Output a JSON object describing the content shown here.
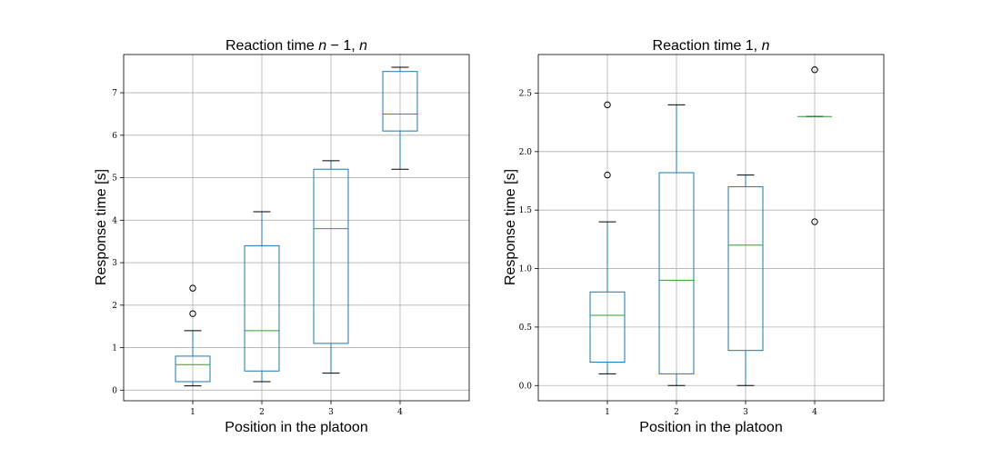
{
  "chart_data": [
    {
      "type": "box",
      "title": "Reaction time n − 1, n",
      "title_parts": {
        "prefix": "Reaction time ",
        "italic_a": "n",
        "middle": " − 1, ",
        "italic_b": "n"
      },
      "xlabel": "Position in the platoon",
      "ylabel": "Response time [s]",
      "categories": [
        "1",
        "2",
        "3",
        "4"
      ],
      "ylim": [
        -0.25,
        7.9
      ],
      "yticks": [
        "0",
        "1",
        "2",
        "3",
        "4",
        "5",
        "6",
        "7"
      ],
      "grid": true,
      "boxes": [
        {
          "category": "1",
          "whisker_low": 0.1,
          "q1": 0.2,
          "median": 0.6,
          "q3": 0.8,
          "whisker_high": 1.4,
          "outliers": [
            1.8,
            2.4
          ]
        },
        {
          "category": "2",
          "whisker_low": 0.2,
          "q1": 0.45,
          "median": 1.4,
          "q3": 3.4,
          "whisker_high": 4.2,
          "outliers": []
        },
        {
          "category": "3",
          "whisker_low": 0.4,
          "q1": 1.1,
          "median": 3.8,
          "q3": 5.2,
          "whisker_high": 5.4,
          "outliers": []
        },
        {
          "category": "4",
          "whisker_low": 5.2,
          "q1": 6.1,
          "median": 6.5,
          "q3": 7.5,
          "whisker_high": 7.6,
          "outliers": []
        }
      ]
    },
    {
      "type": "box",
      "title": "Reaction time 1, n",
      "title_parts": {
        "prefix": "Reaction time 1, ",
        "italic_a": "n",
        "middle": "",
        "italic_b": ""
      },
      "xlabel": "Position in the platoon",
      "ylabel": "Response time [s]",
      "categories": [
        "1",
        "2",
        "3",
        "4"
      ],
      "ylim": [
        -0.13,
        2.83
      ],
      "yticks": [
        "0.0",
        "0.5",
        "1.0",
        "1.5",
        "2.0",
        "2.5"
      ],
      "grid": true,
      "boxes": [
        {
          "category": "1",
          "whisker_low": 0.1,
          "q1": 0.2,
          "median": 0.6,
          "q3": 0.8,
          "whisker_high": 1.4,
          "outliers": [
            1.8,
            2.4
          ]
        },
        {
          "category": "2",
          "whisker_low": 0.0,
          "q1": 0.1,
          "median": 0.9,
          "q3": 1.82,
          "whisker_high": 2.4,
          "outliers": []
        },
        {
          "category": "3",
          "whisker_low": 0.0,
          "q1": 0.3,
          "median": 1.2,
          "q3": 1.7,
          "whisker_high": 1.8,
          "outliers": []
        },
        {
          "category": "4",
          "whisker_low": 2.3,
          "q1": 2.3,
          "median": 2.3,
          "q3": 2.3,
          "whisker_high": 2.3,
          "outliers": [
            1.4,
            2.7
          ]
        }
      ]
    }
  ],
  "colors": {
    "box": "#1f77b4",
    "median": "#2ca02c",
    "whisker": "#1f77b4",
    "cap": "#000000",
    "outlier": "#000000",
    "grid": "#b0b0b0"
  }
}
